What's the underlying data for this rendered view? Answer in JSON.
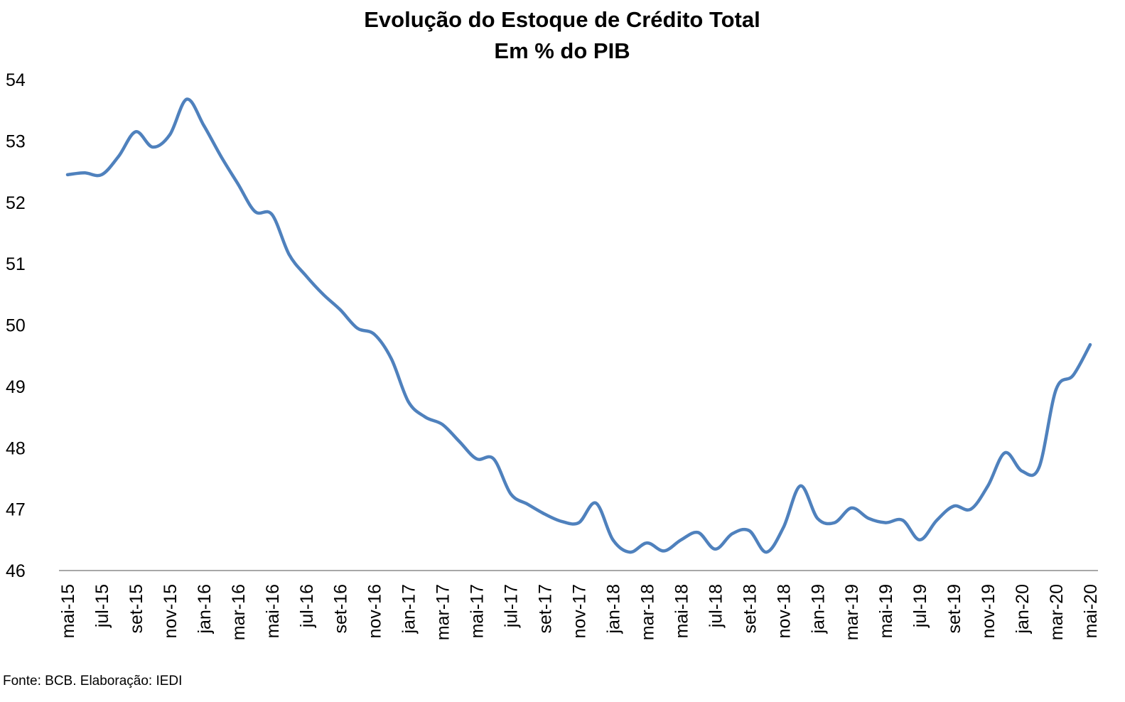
{
  "chart_data": {
    "type": "line",
    "title": "Evolução do Estoque de Crédito Total",
    "subtitle": "Em % do PIB",
    "xlabel": "",
    "ylabel": "",
    "ylim": [
      46,
      54
    ],
    "yticks": [
      "54",
      "53",
      "52",
      "51",
      "50",
      "49",
      "48",
      "47",
      "46"
    ],
    "grid": false,
    "legend": "none",
    "line_color": "#4F81BD",
    "categories": [
      "mai-15",
      "jun-15",
      "jul-15",
      "ago-15",
      "set-15",
      "out-15",
      "nov-15",
      "dez-15",
      "jan-16",
      "fev-16",
      "mar-16",
      "abr-16",
      "mai-16",
      "jun-16",
      "jul-16",
      "ago-16",
      "set-16",
      "out-16",
      "nov-16",
      "dez-16",
      "jan-17",
      "fev-17",
      "mar-17",
      "abr-17",
      "mai-17",
      "jun-17",
      "jul-17",
      "ago-17",
      "set-17",
      "out-17",
      "nov-17",
      "dez-17",
      "jan-18",
      "fev-18",
      "mar-18",
      "abr-18",
      "mai-18",
      "jun-18",
      "jul-18",
      "ago-18",
      "set-18",
      "out-18",
      "nov-18",
      "dez-18",
      "jan-19",
      "fev-19",
      "mar-19",
      "abr-19",
      "mai-19",
      "jun-19",
      "jul-19",
      "ago-19",
      "set-19",
      "out-19",
      "nov-19",
      "dez-19",
      "jan-20",
      "fev-20",
      "mar-20",
      "abr-20",
      "mai-20"
    ],
    "tick_labels": [
      "mai-15",
      "jul-15",
      "set-15",
      "nov-15",
      "jan-16",
      "mar-16",
      "mai-16",
      "jul-16",
      "set-16",
      "nov-16",
      "jan-17",
      "mar-17",
      "mai-17",
      "jul-17",
      "set-17",
      "nov-17",
      "jan-18",
      "mar-18",
      "mai-18",
      "jul-18",
      "set-18",
      "nov-18",
      "jan-19",
      "mar-19",
      "mai-19",
      "jul-19",
      "set-19",
      "nov-19",
      "jan-20",
      "mar-20",
      "mai-20"
    ],
    "series": [
      {
        "values": [
          52.45,
          52.48,
          52.45,
          52.75,
          53.15,
          52.9,
          53.1,
          53.68,
          53.25,
          52.75,
          52.3,
          51.85,
          51.8,
          51.15,
          50.8,
          50.5,
          50.25,
          49.95,
          49.85,
          49.45,
          48.75,
          48.5,
          48.38,
          48.1,
          47.82,
          47.82,
          47.25,
          47.08,
          46.92,
          46.8,
          46.78,
          47.1,
          46.5,
          46.3,
          46.45,
          46.32,
          46.5,
          46.62,
          46.35,
          46.6,
          46.65,
          46.3,
          46.7,
          47.38,
          46.85,
          46.78,
          47.02,
          46.85,
          46.78,
          46.82,
          46.5,
          46.82,
          47.05,
          47.0,
          47.38,
          47.92,
          47.62,
          47.68,
          48.95,
          49.18,
          49.68
        ]
      }
    ]
  },
  "source": "Fonte: BCB. Elaboração: IEDI"
}
